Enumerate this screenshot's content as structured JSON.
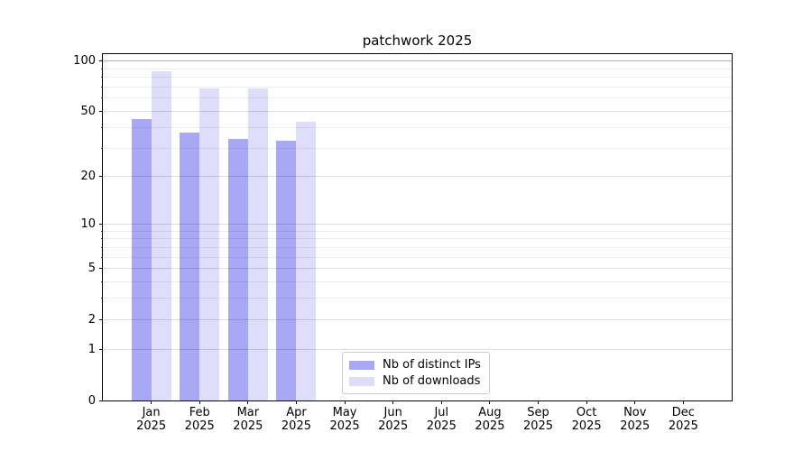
{
  "chart_data": {
    "type": "bar",
    "title": "patchwork 2025",
    "x_categories": [
      "Jan",
      "Feb",
      "Mar",
      "Apr",
      "May",
      "Jun",
      "Jul",
      "Aug",
      "Sep",
      "Oct",
      "Nov",
      "Dec"
    ],
    "x_sub_label": "2025",
    "series": [
      {
        "name": "Nb of distinct IPs",
        "color": "#a8a8f4",
        "alpha": 1.0,
        "values": [
          45,
          37,
          34,
          33,
          null,
          null,
          null,
          null,
          null,
          null,
          null,
          null
        ]
      },
      {
        "name": "Nb of downloads",
        "color": "#a8a8f4",
        "alpha": 0.38,
        "values": [
          87,
          69,
          69,
          43,
          null,
          null,
          null,
          null,
          null,
          null,
          null,
          null
        ]
      }
    ],
    "yscale": "log1p",
    "ylim": [
      0,
      110
    ],
    "yticks": [
      0,
      1,
      2,
      5,
      10,
      20,
      50,
      100
    ],
    "minor_yticks": [
      3,
      4,
      6,
      7,
      8,
      9,
      30,
      40,
      60,
      70,
      80,
      90
    ],
    "grid": "both",
    "legend": {
      "position": "lower center inside"
    }
  }
}
